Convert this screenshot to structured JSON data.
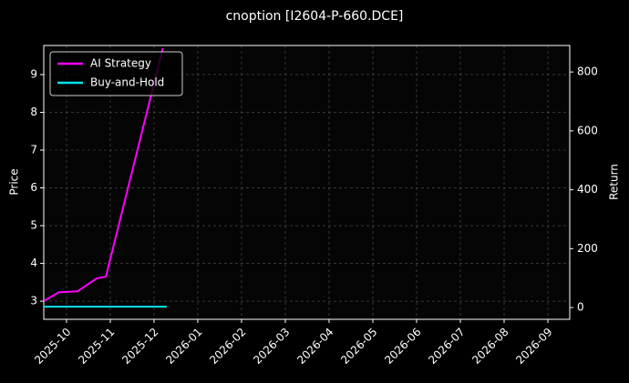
{
  "chart_data": {
    "type": "line",
    "title": "cnoption [I2604-P-660.DCE]",
    "ylabel": "Price",
    "y2label": "Return",
    "x": [
      -0.52,
      -0.17,
      0.25,
      0.69,
      0.9,
      2.2
    ],
    "xlim": [
      -0.52,
      11.5
    ],
    "xticks": [
      {
        "value": 0,
        "label": "2025-10"
      },
      {
        "value": 1,
        "label": "2025-11"
      },
      {
        "value": 2,
        "label": "2025-12"
      },
      {
        "value": 3,
        "label": "2026-01"
      },
      {
        "value": 4,
        "label": "2026-02"
      },
      {
        "value": 5,
        "label": "2026-03"
      },
      {
        "value": 6,
        "label": "2026-04"
      },
      {
        "value": 7,
        "label": "2026-05"
      },
      {
        "value": 8,
        "label": "2026-06"
      },
      {
        "value": 9,
        "label": "2026-07"
      },
      {
        "value": 10,
        "label": "2026-08"
      },
      {
        "value": 11,
        "label": "2026-09"
      }
    ],
    "ylim": [
      2.52,
      9.77
    ],
    "yticks": [
      3,
      4,
      5,
      6,
      7,
      8,
      9
    ],
    "y2lim": [
      -40,
      890
    ],
    "y2ticks": [
      0,
      200,
      400,
      600,
      800
    ],
    "grid": true,
    "legend": "upper-left",
    "series": [
      {
        "name": "AI Strategy",
        "color": "#ff00ff",
        "axis": "y2",
        "x": [
          -0.52,
          -0.17,
          0.25,
          0.69,
          0.9,
          2.2
        ],
        "values": [
          22,
          52,
          55,
          99,
          105,
          880
        ]
      },
      {
        "name": "Buy-and-Hold",
        "color": "#00e5ee",
        "axis": "y2",
        "x": [
          -0.52,
          2.29
        ],
        "values": [
          3,
          3
        ]
      }
    ]
  }
}
